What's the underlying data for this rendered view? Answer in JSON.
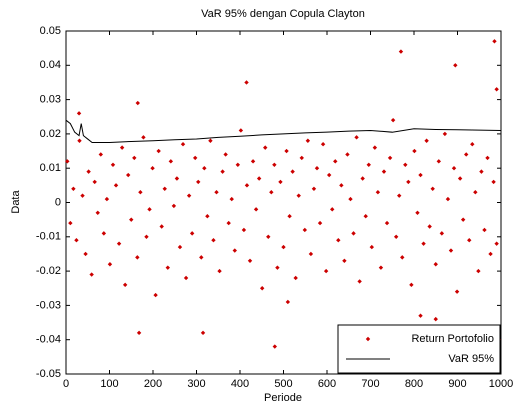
{
  "chart_data": {
    "type": "scatter",
    "title": "VaR 95% dengan Copula Clayton",
    "x_label": "Periode",
    "y_label": "Data",
    "xlim": [
      0,
      1000
    ],
    "xticks": [
      0,
      100,
      200,
      300,
      400,
      500,
      600,
      700,
      800,
      900,
      1000
    ],
    "ylim": [
      -0.05,
      0.05
    ],
    "yticks": [
      -0.05,
      -0.04,
      -0.03,
      -0.02,
      -0.01,
      0,
      0.01,
      0.02,
      0.03,
      0.04,
      0.05
    ],
    "grid": false,
    "legend": "southeast",
    "series": [
      {
        "name": "Return Portofolio",
        "type": "scatter",
        "color": "#cc0000",
        "x": [
          3,
          10,
          17,
          24,
          31,
          38,
          45,
          52,
          59,
          66,
          73,
          80,
          87,
          94,
          101,
          108,
          115,
          122,
          129,
          136,
          143,
          150,
          157,
          164,
          171,
          178,
          185,
          192,
          199,
          206,
          213,
          220,
          227,
          234,
          241,
          248,
          255,
          262,
          269,
          276,
          283,
          290,
          297,
          304,
          311,
          318,
          325,
          332,
          339,
          346,
          353,
          360,
          367,
          374,
          381,
          388,
          395,
          402,
          409,
          416,
          423,
          430,
          437,
          444,
          451,
          458,
          465,
          472,
          479,
          486,
          493,
          500,
          507,
          514,
          521,
          528,
          535,
          542,
          549,
          556,
          563,
          570,
          577,
          584,
          591,
          598,
          605,
          612,
          619,
          626,
          633,
          640,
          647,
          654,
          661,
          668,
          675,
          682,
          689,
          696,
          703,
          710,
          717,
          724,
          731,
          738,
          745,
          752,
          759,
          766,
          773,
          780,
          787,
          794,
          801,
          808,
          815,
          822,
          829,
          836,
          843,
          850,
          857,
          864,
          871,
          878,
          885,
          892,
          899,
          906,
          913,
          920,
          927,
          934,
          941,
          948,
          955,
          962,
          969,
          976,
          983,
          990,
          30,
          165,
          168,
          315,
          415,
          480,
          510,
          770,
          815,
          850,
          895,
          985,
          990,
          995
        ],
        "values": [
          0.012,
          -0.006,
          0.004,
          -0.011,
          0.018,
          0.002,
          -0.015,
          0.009,
          -0.021,
          0.006,
          -0.003,
          0.014,
          -0.009,
          0.001,
          -0.018,
          0.011,
          0.005,
          -0.012,
          0.016,
          -0.024,
          0.008,
          -0.005,
          0.013,
          -0.016,
          0.003,
          0.019,
          -0.01,
          -0.002,
          0.01,
          -0.027,
          0.015,
          -0.007,
          0.004,
          -0.019,
          0.012,
          -0.001,
          0.007,
          -0.013,
          0.017,
          -0.022,
          0.002,
          -0.009,
          0.013,
          0.006,
          -0.016,
          0.01,
          -0.004,
          0.018,
          -0.011,
          0.003,
          -0.02,
          0.009,
          0.014,
          -0.006,
          0.001,
          -0.014,
          0.011,
          0.021,
          -0.008,
          0.005,
          -0.017,
          0.012,
          -0.002,
          0.007,
          -0.025,
          0.016,
          -0.01,
          0.003,
          0.011,
          -0.019,
          0.006,
          -0.013,
          0.015,
          -0.004,
          0.009,
          -0.022,
          0.002,
          0.013,
          -0.008,
          0.018,
          -0.015,
          0.004,
          0.01,
          -0.006,
          0.017,
          -0.02,
          0.008,
          -0.002,
          0.012,
          -0.011,
          0.005,
          -0.017,
          0.014,
          0.001,
          -0.009,
          0.019,
          -0.023,
          0.007,
          -0.004,
          0.011,
          -0.013,
          0.016,
          0.003,
          -0.019,
          0.009,
          -0.006,
          0.013,
          0.024,
          -0.01,
          0.002,
          -0.016,
          0.011,
          0.006,
          -0.024,
          0.015,
          -0.003,
          0.008,
          -0.012,
          0.018,
          -0.007,
          0.004,
          -0.018,
          0.012,
          -0.009,
          0.02,
          0.001,
          -0.014,
          0.01,
          -0.026,
          0.007,
          -0.005,
          0.014,
          -0.011,
          0.017,
          0.003,
          -0.02,
          0.009,
          -0.008,
          0.013,
          -0.015,
          0.006,
          -0.012,
          0.026,
          0.029,
          -0.038,
          -0.038,
          0.035,
          -0.042,
          -0.029,
          0.044,
          -0.033,
          -0.034,
          0.04,
          0.047,
          0.033,
          -0.04
        ]
      },
      {
        "name": "VaR 95%",
        "type": "line",
        "color": "#000000",
        "x": [
          0,
          10,
          20,
          30,
          35,
          40,
          50,
          60,
          100,
          150,
          200,
          250,
          300,
          350,
          400,
          450,
          500,
          550,
          600,
          650,
          700,
          750,
          800,
          850,
          900,
          950,
          1000
        ],
        "values": [
          0.024,
          0.023,
          0.0205,
          0.0195,
          0.023,
          0.0195,
          0.0185,
          0.0175,
          0.0175,
          0.0178,
          0.018,
          0.0183,
          0.0185,
          0.019,
          0.0193,
          0.0197,
          0.02,
          0.0203,
          0.0205,
          0.0208,
          0.021,
          0.0205,
          0.0215,
          0.0213,
          0.0212,
          0.0211,
          0.021
        ]
      }
    ]
  }
}
